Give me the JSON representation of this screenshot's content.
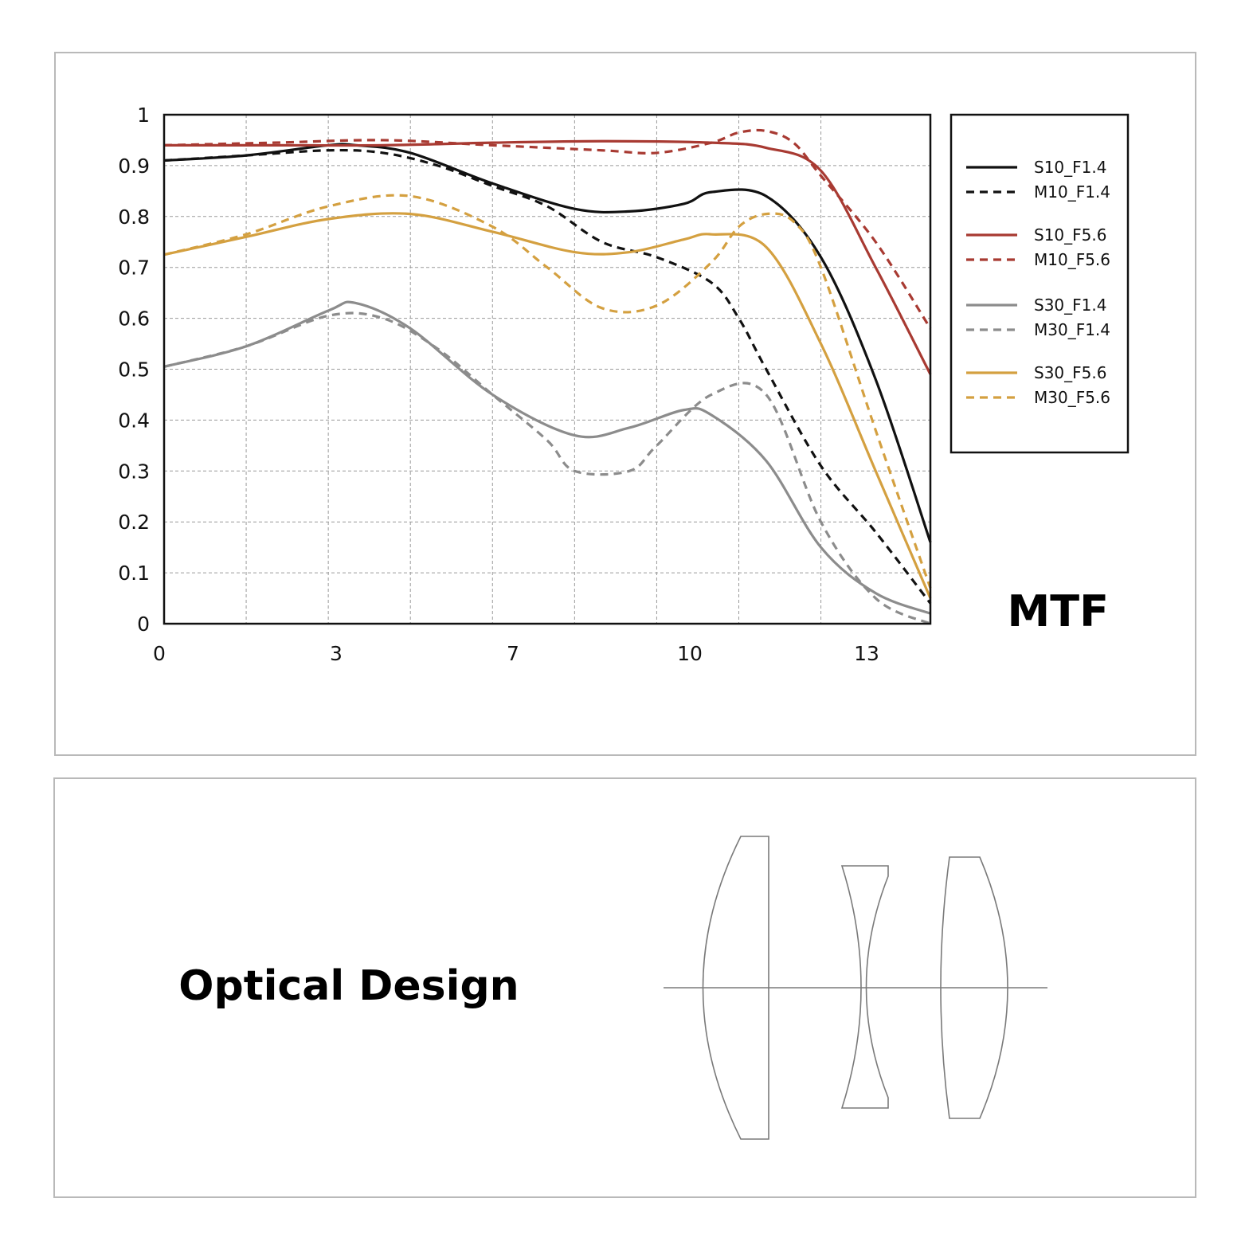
{
  "chart_data": {
    "type": "line",
    "title": "MTF",
    "xlabel": "",
    "ylabel": "",
    "xlim": [
      0,
      14
    ],
    "ylim": [
      0,
      1
    ],
    "x_ticks": [
      0,
      3,
      7,
      10,
      13
    ],
    "y_ticks": [
      0,
      0.1,
      0.2,
      0.3,
      0.4,
      0.5,
      0.6,
      0.7,
      0.8,
      0.9,
      1
    ],
    "x_gridlines": [
      1.5,
      3,
      4.5,
      6,
      7.5,
      9,
      10.5,
      12
    ],
    "grid": true,
    "legend_position": "right",
    "series": [
      {
        "name": "S10_F1.4",
        "color": "#111111",
        "dash": "solid",
        "x": [
          0,
          1.5,
          3,
          3.5,
          4.5,
          6,
          7.5,
          8.5,
          9.5,
          10,
          11,
          12,
          13,
          14
        ],
        "y": [
          0.91,
          0.92,
          0.94,
          0.94,
          0.925,
          0.865,
          0.815,
          0.81,
          0.825,
          0.848,
          0.84,
          0.72,
          0.48,
          0.16
        ]
      },
      {
        "name": "M10_F1.4",
        "color": "#111111",
        "dash": "dashed",
        "x": [
          0,
          1.5,
          3,
          4,
          5,
          6,
          7,
          8,
          9,
          10,
          10.5,
          11,
          12,
          13,
          14
        ],
        "y": [
          0.91,
          0.92,
          0.93,
          0.925,
          0.9,
          0.86,
          0.82,
          0.75,
          0.72,
          0.67,
          0.6,
          0.5,
          0.31,
          0.18,
          0.04
        ]
      },
      {
        "name": "S10_F5.6",
        "color": "#a83a32",
        "dash": "solid",
        "x": [
          0,
          2,
          4,
          6,
          8,
          10,
          11,
          12,
          13,
          14
        ],
        "y": [
          0.94,
          0.94,
          0.94,
          0.945,
          0.948,
          0.945,
          0.935,
          0.89,
          0.7,
          0.49
        ]
      },
      {
        "name": "M10_F5.6",
        "color": "#a83a32",
        "dash": "dashed",
        "x": [
          0,
          2,
          4,
          6,
          8,
          9,
          10,
          10.5,
          11,
          11.5,
          12,
          13,
          14
        ],
        "y": [
          0.94,
          0.945,
          0.95,
          0.94,
          0.93,
          0.925,
          0.945,
          0.965,
          0.968,
          0.945,
          0.88,
          0.75,
          0.58
        ]
      },
      {
        "name": "S30_F1.4",
        "color": "#8c8c8c",
        "dash": "solid",
        "x": [
          0,
          1.5,
          3,
          3.5,
          4.5,
          6,
          7.5,
          8.5,
          9.5,
          10,
          11,
          12,
          13,
          14
        ],
        "y": [
          0.505,
          0.545,
          0.615,
          0.63,
          0.58,
          0.45,
          0.37,
          0.385,
          0.42,
          0.41,
          0.32,
          0.15,
          0.06,
          0.02
        ]
      },
      {
        "name": "M30_F1.4",
        "color": "#8c8c8c",
        "dash": "dashed",
        "x": [
          0,
          1.5,
          3,
          4,
          5,
          6,
          7,
          7.5,
          8.5,
          9,
          10,
          11,
          12,
          13,
          14
        ],
        "y": [
          0.505,
          0.545,
          0.605,
          0.6,
          0.54,
          0.45,
          0.36,
          0.3,
          0.3,
          0.35,
          0.45,
          0.45,
          0.2,
          0.05,
          0
        ]
      },
      {
        "name": "S30_F5.6",
        "color": "#d4a040",
        "dash": "solid",
        "x": [
          0,
          1.5,
          3,
          4.5,
          6,
          7.5,
          8.5,
          9.5,
          10,
          11,
          12,
          13,
          14
        ],
        "y": [
          0.725,
          0.76,
          0.795,
          0.805,
          0.77,
          0.73,
          0.73,
          0.755,
          0.765,
          0.74,
          0.55,
          0.3,
          0.05
        ]
      },
      {
        "name": "M30_F5.6",
        "color": "#d4a040",
        "dash": "dashed",
        "x": [
          0,
          1.5,
          3,
          4.5,
          6,
          7,
          8,
          9,
          10,
          10.5,
          11,
          11.5,
          12,
          13,
          14
        ],
        "y": [
          0.725,
          0.765,
          0.82,
          0.84,
          0.78,
          0.7,
          0.62,
          0.625,
          0.71,
          0.78,
          0.805,
          0.79,
          0.7,
          0.38,
          0.07
        ]
      }
    ]
  },
  "optical_design": {
    "title": "Optical Design",
    "lens_count": 3
  }
}
